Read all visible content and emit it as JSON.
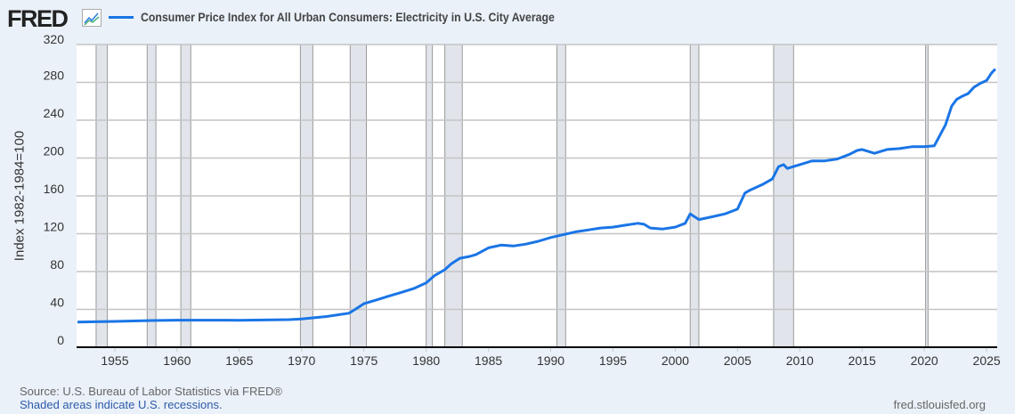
{
  "header": {
    "logo": "FRED",
    "logo_icon": "line-chart-icon"
  },
  "chart_data": {
    "type": "line",
    "title": "Consumer Price Index for All Urban Consumers: Electricity in U.S. City Average",
    "xlabel": "",
    "ylabel": "Index 1982-1984=100",
    "xlim": [
      1951.93,
      2025.85
    ],
    "ylim": [
      0,
      320
    ],
    "yticks": [
      0,
      40,
      80,
      120,
      160,
      200,
      240,
      280,
      320
    ],
    "xticks": [
      1955,
      1960,
      1965,
      1970,
      1975,
      1980,
      1985,
      1990,
      1995,
      2000,
      2005,
      2010,
      2015,
      2020,
      2025
    ],
    "grid": true,
    "legend": "top-left",
    "color": "#1a75e6",
    "recessions": [
      [
        1953.5,
        1954.4
      ],
      [
        1957.6,
        1958.3
      ],
      [
        1960.3,
        1961.1
      ],
      [
        1969.9,
        1970.9
      ],
      [
        1973.9,
        1975.2
      ],
      [
        1980.0,
        1980.5
      ],
      [
        1981.5,
        1982.9
      ],
      [
        1990.5,
        1991.2
      ],
      [
        2001.2,
        2001.9
      ],
      [
        2007.9,
        2009.5
      ],
      [
        2020.1,
        2020.3
      ]
    ],
    "series": [
      {
        "name": "Consumer Price Index for All Urban Consumers: Electricity in U.S. City Average",
        "x": [
          1952,
          1955,
          1958,
          1960,
          1965,
          1969,
          1970,
          1972,
          1973.8,
          1974.3,
          1975,
          1976,
          1977,
          1978,
          1979,
          1980,
          1980.7,
          1981.5,
          1982,
          1982.7,
          1983.5,
          1984,
          1985,
          1986,
          1987,
          1988,
          1989,
          1990,
          1991,
          1992,
          1993,
          1994,
          1995,
          1996,
          1997,
          1997.5,
          1998,
          1999,
          2000,
          2000.8,
          2001.2,
          2001.9,
          2003,
          2004,
          2005,
          2005.6,
          2006,
          2007,
          2007.8,
          2008.3,
          2008.7,
          2009,
          2010,
          2011,
          2012,
          2013,
          2014,
          2014.6,
          2015,
          2016,
          2017,
          2018,
          2019,
          2020,
          2020.8,
          2021,
          2021.7,
          2022.2,
          2022.6,
          2023,
          2023.5,
          2024,
          2024.5,
          2025,
          2025.4,
          2025.7
        ],
        "values": [
          26.5,
          27.3,
          28.2,
          28.6,
          28.5,
          29.2,
          29.8,
          32.5,
          36,
          40,
          46,
          50,
          54,
          58,
          62,
          68,
          76,
          82,
          88,
          94,
          96,
          98,
          105,
          108,
          107,
          109,
          112,
          116,
          119,
          122,
          124,
          126,
          127,
          129,
          131,
          130,
          126,
          125,
          127,
          131,
          141,
          135,
          138,
          141,
          146,
          163,
          166,
          172,
          178,
          191,
          193,
          189,
          193,
          197,
          197,
          199,
          204,
          208,
          209,
          205,
          209,
          210,
          212,
          212,
          213,
          218,
          235,
          255,
          262,
          265,
          268,
          275,
          279,
          282,
          290,
          294
        ]
      }
    ]
  },
  "footer": {
    "source": "Source: U.S. Bureau of Labor Statistics via FRED®",
    "recessions_note": "Shaded areas indicate U.S. recessions.",
    "url": "fred.stlouisfed.org"
  }
}
